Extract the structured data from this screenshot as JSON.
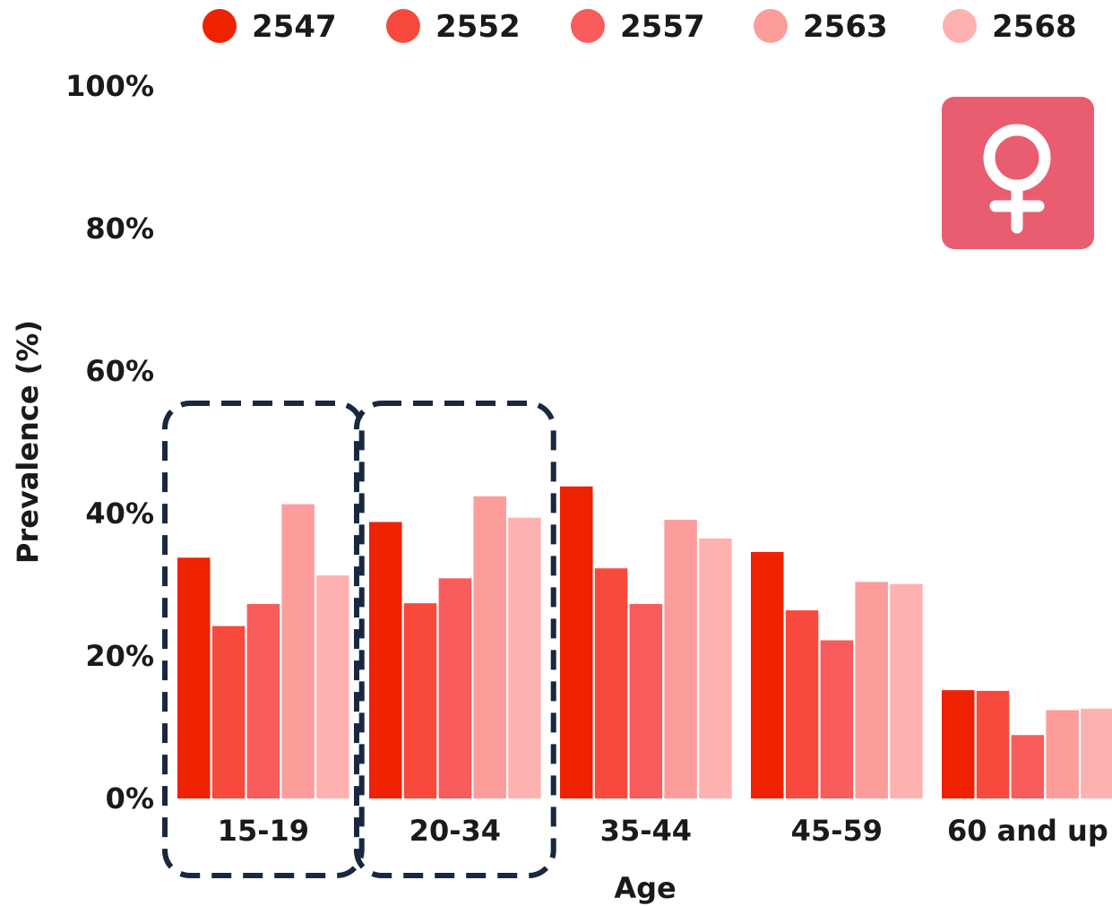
{
  "chart_data": {
    "type": "bar",
    "xlabel": "Age",
    "ylabel": "Prevalence (%)",
    "ylim": [
      0,
      100
    ],
    "yticks": [
      "0%",
      "20%",
      "40%",
      "60%",
      "80%",
      "100%"
    ],
    "categories": [
      "15-19",
      "20-34",
      "35-44",
      "45-59",
      "60 and up"
    ],
    "series": [
      {
        "name": "2547",
        "color": "#ee2200",
        "values": [
          33.8,
          38.8,
          43.8,
          34.6,
          15.2
        ]
      },
      {
        "name": "2552",
        "color": "#f74a3d",
        "values": [
          24.2,
          27.4,
          32.3,
          26.4,
          15.1
        ]
      },
      {
        "name": "2557",
        "color": "#f85c5c",
        "values": [
          27.3,
          30.9,
          27.3,
          22.2,
          8.9
        ]
      },
      {
        "name": "2563",
        "color": "#fc9d9b",
        "values": [
          41.3,
          42.4,
          39.1,
          30.4,
          12.4
        ]
      },
      {
        "name": "2568",
        "color": "#feb2b0",
        "values": [
          31.3,
          39.4,
          36.5,
          30.1,
          12.6
        ]
      }
    ],
    "legend_position": "top",
    "grid": false,
    "highlighted_categories": [
      "15-19",
      "20-34"
    ],
    "icon": "female-symbol-icon"
  }
}
